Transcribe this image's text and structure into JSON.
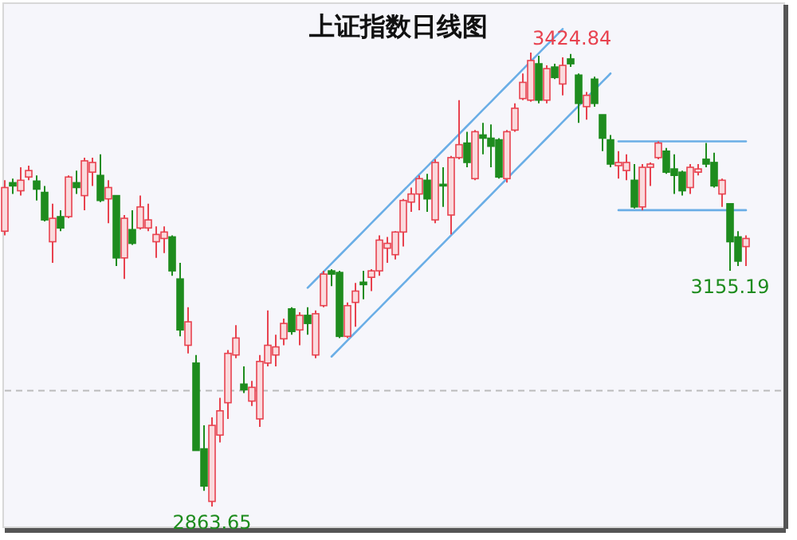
{
  "chart_data": {
    "type": "candlestick",
    "title": "上证指数日线图",
    "categories": [
      null,
      null,
      null,
      null,
      null,
      null,
      null,
      null,
      null,
      null,
      null,
      null,
      null,
      null,
      null,
      null,
      null,
      null,
      null,
      null,
      null,
      null,
      null,
      null,
      null,
      null,
      null,
      null,
      null,
      null,
      null,
      null,
      null,
      null,
      null,
      null,
      null,
      null,
      null,
      null,
      null,
      null,
      null,
      null,
      null,
      null,
      null,
      null,
      null,
      null,
      null,
      null,
      null,
      null,
      null,
      null,
      null,
      null,
      null,
      null,
      null,
      null,
      null,
      null,
      null,
      null,
      null,
      null,
      null,
      null,
      null,
      null,
      null,
      null,
      null,
      null,
      null,
      null,
      null,
      null,
      null,
      null,
      null,
      null,
      null,
      null,
      null,
      null,
      null,
      null,
      null,
      null,
      null,
      null
    ],
    "ohlc": [
      [
        3204,
        3267,
        3199,
        3258
      ],
      [
        3264,
        3269,
        3250,
        3260
      ],
      [
        3254,
        3283,
        3248,
        3267
      ],
      [
        3271,
        3285,
        3267,
        3279
      ],
      [
        3266,
        3273,
        3242,
        3256
      ],
      [
        3252,
        3260,
        3216,
        3218
      ],
      [
        3191,
        3238,
        3165,
        3220
      ],
      [
        3222,
        3230,
        3204,
        3208
      ],
      [
        3222,
        3273,
        3220,
        3271
      ],
      [
        3264,
        3279,
        3250,
        3258
      ],
      [
        3248,
        3295,
        3230,
        3291
      ],
      [
        3277,
        3295,
        3260,
        3289
      ],
      [
        3273,
        3299,
        3240,
        3242
      ],
      [
        3244,
        3267,
        3214,
        3258
      ],
      [
        3248,
        3248,
        3161,
        3171
      ],
      [
        3171,
        3224,
        3145,
        3220
      ],
      [
        3206,
        3230,
        3187,
        3189
      ],
      [
        3208,
        3248,
        3206,
        3234
      ],
      [
        3208,
        3238,
        3204,
        3218
      ],
      [
        3191,
        3210,
        3171,
        3200
      ],
      [
        3195,
        3210,
        3177,
        3203
      ],
      [
        3197,
        3199,
        3149,
        3155
      ],
      [
        3145,
        3165,
        3074,
        3082
      ],
      [
        3063,
        3110,
        3053,
        3092
      ],
      [
        3041,
        3051,
        2933,
        2933
      ],
      [
        2935,
        2964,
        2883,
        2889
      ],
      [
        2870,
        2974,
        2863.65,
        2964
      ],
      [
        2952,
        2998,
        2943,
        2982
      ],
      [
        2992,
        3057,
        2972,
        3053
      ],
      [
        3051,
        3088,
        3047,
        3072
      ],
      [
        3015,
        3037,
        3004,
        3008
      ],
      [
        2994,
        3019,
        2988,
        3011
      ],
      [
        2972,
        3051,
        2962,
        3043
      ],
      [
        3041,
        3106,
        3037,
        3063
      ],
      [
        3051,
        3076,
        3037,
        3061
      ],
      [
        3071,
        3096,
        3063,
        3090
      ],
      [
        3108,
        3110,
        3076,
        3080
      ],
      [
        3082,
        3104,
        3063,
        3100
      ],
      [
        3100,
        3110,
        3076,
        3090
      ],
      [
        3051,
        3106,
        3047,
        3102
      ],
      [
        3112,
        3155,
        3110,
        3151
      ],
      [
        3155,
        3157,
        3136,
        3151
      ],
      [
        3153,
        3155,
        3072,
        3074
      ],
      [
        3074,
        3116,
        3072,
        3112
      ],
      [
        3116,
        3140,
        3086,
        3130
      ],
      [
        3141,
        3155,
        3120,
        3138
      ],
      [
        3147,
        3157,
        3130,
        3155
      ],
      [
        3155,
        3199,
        3149,
        3193
      ],
      [
        3183,
        3197,
        3165,
        3189
      ],
      [
        3175,
        3204,
        3169,
        3203
      ],
      [
        3203,
        3244,
        3185,
        3242
      ],
      [
        3240,
        3258,
        3228,
        3250
      ],
      [
        3250,
        3273,
        3230,
        3269
      ],
      [
        3267,
        3275,
        3228,
        3244
      ],
      [
        3218,
        3293,
        3214,
        3289
      ],
      [
        3262,
        3283,
        3234,
        3260
      ],
      [
        3224,
        3297,
        3200,
        3295
      ],
      [
        3295,
        3366,
        3293,
        3311
      ],
      [
        3313,
        3327,
        3283,
        3289
      ],
      [
        3269,
        3329,
        3267,
        3327
      ],
      [
        3323,
        3338,
        3299,
        3319
      ],
      [
        3319,
        3336,
        3283,
        3309
      ],
      [
        3317,
        3319,
        3269,
        3271
      ],
      [
        3269,
        3329,
        3264,
        3327
      ],
      [
        3329,
        3362,
        3327,
        3356
      ],
      [
        3368,
        3399,
        3366,
        3388
      ],
      [
        3366,
        3424.84,
        3364,
        3415
      ],
      [
        3411,
        3421,
        3362,
        3366
      ],
      [
        3366,
        3409,
        3362,
        3405
      ],
      [
        3407,
        3411,
        3392,
        3394
      ],
      [
        3386,
        3419,
        3372,
        3409
      ],
      [
        3417,
        3423,
        3407,
        3411
      ],
      [
        3397,
        3399,
        3338,
        3362
      ],
      [
        3358,
        3376,
        3342,
        3372
      ],
      [
        3392,
        3395,
        3358,
        3362
      ],
      [
        3348,
        3348,
        3303,
        3319
      ],
      [
        3317,
        3323,
        3283,
        3287
      ],
      [
        3285,
        3303,
        3269,
        3289
      ],
      [
        3279,
        3299,
        3267,
        3289
      ],
      [
        3267,
        3287,
        3232,
        3234
      ],
      [
        3234,
        3287,
        3230,
        3283
      ],
      [
        3283,
        3289,
        3260,
        3287
      ],
      [
        3295,
        3315,
        3293,
        3313
      ],
      [
        3303,
        3307,
        3275,
        3277
      ],
      [
        3281,
        3299,
        3250,
        3273
      ],
      [
        3277,
        3279,
        3248,
        3254
      ],
      [
        3258,
        3287,
        3250,
        3283
      ],
      [
        3277,
        3287,
        3273,
        3281
      ],
      [
        3293,
        3313,
        3283,
        3287
      ],
      [
        3289,
        3301,
        3258,
        3260
      ],
      [
        3250,
        3269,
        3234,
        3267
      ],
      [
        3238,
        3238,
        3155.19,
        3191
      ],
      [
        3197,
        3204,
        3161,
        3167
      ],
      [
        3185,
        3199,
        3161,
        3195
      ]
    ],
    "colors": [
      "#e8424f",
      "#1e8c1e",
      "#e8424f",
      "#e8424f",
      "#1e8c1e",
      "#1e8c1e",
      "#e8424f",
      "#1e8c1e",
      "#e8424f",
      "#1e8c1e",
      "#e8424f",
      "#e8424f",
      "#1e8c1e",
      "#e8424f",
      "#1e8c1e",
      "#e8424f",
      "#1e8c1e",
      "#e8424f",
      "#e8424f",
      "#e8424f",
      "#e8424f",
      "#1e8c1e",
      "#1e8c1e",
      "#e8424f",
      "#1e8c1e",
      "#1e8c1e",
      "#e8424f",
      "#e8424f",
      "#e8424f",
      "#e8424f",
      "#1e8c1e",
      "#e8424f",
      "#e8424f",
      "#e8424f",
      "#e8424f",
      "#e8424f",
      "#1e8c1e",
      "#e8424f",
      "#1e8c1e",
      "#e8424f",
      "#e8424f",
      "#1e8c1e",
      "#1e8c1e",
      "#e8424f",
      "#e8424f",
      "#1e8c1e",
      "#e8424f",
      "#e8424f",
      "#e8424f",
      "#e8424f",
      "#e8424f",
      "#e8424f",
      "#e8424f",
      "#1e8c1e",
      "#e8424f",
      "#1e8c1e",
      "#e8424f",
      "#e8424f",
      "#1e8c1e",
      "#e8424f",
      "#1e8c1e",
      "#1e8c1e",
      "#1e8c1e",
      "#e8424f",
      "#e8424f",
      "#e8424f",
      "#e8424f",
      "#1e8c1e",
      "#e8424f",
      "#1e8c1e",
      "#e8424f",
      "#1e8c1e",
      "#1e8c1e",
      "#e8424f",
      "#1e8c1e",
      "#1e8c1e",
      "#1e8c1e",
      "#e8424f",
      "#e8424f",
      "#1e8c1e",
      "#e8424f",
      "#e8424f",
      "#e8424f",
      "#1e8c1e",
      "#1e8c1e",
      "#1e8c1e",
      "#e8424f",
      "#e8424f",
      "#1e8c1e",
      "#1e8c1e",
      "#e8424f",
      "#1e8c1e",
      "#1e8c1e",
      "#e8424f"
    ],
    "series": [
      {
        "type": "line",
        "values": [
          null,
          null,
          null,
          null,
          null,
          null,
          null,
          null,
          null,
          null,
          null,
          null,
          null,
          null,
          null,
          null,
          null,
          null,
          null,
          null,
          null,
          null,
          null,
          null,
          null,
          null,
          null,
          null,
          null,
          null,
          null,
          null,
          null,
          null,
          null,
          null,
          null,
          null,
          3134,
          3144,
          3154,
          3164,
          3174,
          3184,
          3194,
          3204,
          3214,
          3224,
          3234,
          3244,
          3254,
          3264,
          3274,
          3284,
          3294,
          3304,
          3314,
          3324,
          3334,
          3344,
          3354,
          3364,
          3374,
          3384,
          3394,
          3404,
          3414,
          3424,
          3434,
          3444,
          3454,
          null,
          null,
          null,
          null,
          null,
          null,
          null,
          null,
          null,
          null,
          null,
          null,
          null,
          null,
          null,
          null,
          null,
          null,
          null,
          null,
          null,
          null,
          null
        ],
        "color": "#6aaee6"
      },
      {
        "type": "line",
        "values": [
          null,
          null,
          null,
          null,
          null,
          null,
          null,
          null,
          null,
          null,
          null,
          null,
          null,
          null,
          null,
          null,
          null,
          null,
          null,
          null,
          null,
          null,
          null,
          null,
          null,
          null,
          null,
          null,
          null,
          null,
          null,
          null,
          null,
          null,
          null,
          null,
          null,
          null,
          null,
          null,
          null,
          3049,
          3059,
          3069,
          3079,
          3089,
          3099,
          3109,
          3119,
          3129,
          3139,
          3149,
          3159,
          3169,
          3179,
          3189,
          3199,
          3209,
          3219,
          3229,
          3239,
          3249,
          3259,
          3269,
          3279,
          3289,
          3299,
          3309,
          3319,
          3329,
          3339,
          3349,
          3359,
          3369,
          3379,
          3389,
          3399,
          null,
          null,
          null,
          null,
          null,
          null,
          null,
          null,
          null,
          null,
          null,
          null,
          null,
          null,
          null,
          null,
          null
        ],
        "color": "#6aaee6"
      },
      {
        "type": "line",
        "values": [
          null,
          null,
          null,
          null,
          null,
          null,
          null,
          null,
          null,
          null,
          null,
          null,
          null,
          null,
          null,
          null,
          null,
          null,
          null,
          null,
          null,
          null,
          null,
          null,
          null,
          null,
          null,
          null,
          null,
          null,
          null,
          null,
          null,
          null,
          null,
          null,
          null,
          null,
          null,
          null,
          null,
          null,
          null,
          null,
          null,
          null,
          null,
          null,
          null,
          null,
          null,
          null,
          null,
          null,
          null,
          null,
          null,
          null,
          null,
          null,
          null,
          null,
          null,
          null,
          null,
          null,
          null,
          null,
          null,
          null,
          null,
          null,
          null,
          null,
          null,
          null,
          null,
          3315,
          3315,
          3315,
          3315,
          3315,
          3315,
          3315,
          3315,
          3315,
          3315,
          3315,
          3315,
          3315,
          3315,
          3315,
          3315,
          3315
        ],
        "color": "#6aaee6"
      },
      {
        "type": "line",
        "values": [
          null,
          null,
          null,
          null,
          null,
          null,
          null,
          null,
          null,
          null,
          null,
          null,
          null,
          null,
          null,
          null,
          null,
          null,
          null,
          null,
          null,
          null,
          null,
          null,
          null,
          null,
          null,
          null,
          null,
          null,
          null,
          null,
          null,
          null,
          null,
          null,
          null,
          null,
          null,
          null,
          null,
          null,
          null,
          null,
          null,
          null,
          null,
          null,
          null,
          null,
          null,
          null,
          null,
          null,
          null,
          null,
          null,
          null,
          null,
          null,
          null,
          null,
          null,
          null,
          null,
          null,
          null,
          null,
          null,
          null,
          null,
          null,
          null,
          null,
          null,
          null,
          null,
          3230,
          3230,
          3230,
          3230,
          3230,
          3230,
          3230,
          3230,
          3230,
          3230,
          3230,
          3230,
          3230,
          3230,
          3230,
          3230,
          3230
        ],
        "color": "#6aaee6"
      }
    ],
    "ref_lines": [
      {
        "axis": "y",
        "value": 3007,
        "color": "#bbbbbb",
        "line_style": "dashed"
      }
    ],
    "annotations": [
      {
        "text": "3424.84",
        "y": 3424.84
      },
      {
        "text": "3155.19",
        "y": 3155.19
      },
      {
        "text": "2863.65",
        "y": 2863.65
      }
    ]
  }
}
